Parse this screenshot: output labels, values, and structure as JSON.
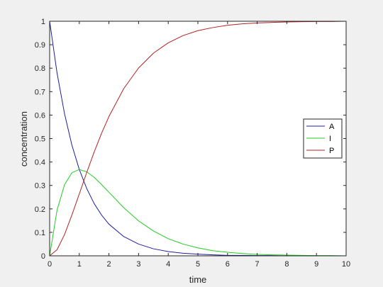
{
  "chart_data": {
    "type": "line",
    "title": "",
    "xlabel": "time",
    "ylabel": "concentration",
    "xlim": [
      0,
      10
    ],
    "ylim": [
      0,
      1
    ],
    "xticks": [
      0,
      1,
      2,
      3,
      4,
      5,
      6,
      7,
      8,
      9,
      10
    ],
    "yticks": [
      0,
      0.1,
      0.2,
      0.3,
      0.4,
      0.5,
      0.6,
      0.7,
      0.8,
      0.9,
      1
    ],
    "grid": false,
    "legend_placement": "right",
    "x": [
      0,
      0.25,
      0.5,
      0.75,
      1,
      1.25,
      1.5,
      1.75,
      2,
      2.5,
      3,
      3.5,
      4,
      4.5,
      5,
      5.5,
      6,
      6.5,
      7,
      7.5,
      8,
      8.5,
      9,
      9.5,
      10
    ],
    "series": [
      {
        "name": "A",
        "color": "#1f1f9f",
        "values": [
          1.0,
          0.779,
          0.607,
          0.472,
          0.368,
          0.287,
          0.223,
          0.174,
          0.135,
          0.082,
          0.05,
          0.03,
          0.018,
          0.011,
          0.007,
          0.004,
          0.002,
          0.002,
          0.001,
          0.001,
          0.0,
          0.0,
          0.0,
          0.0,
          0.0
        ]
      },
      {
        "name": "I",
        "color": "#22cc22",
        "values": [
          0.0,
          0.195,
          0.303,
          0.354,
          0.368,
          0.358,
          0.335,
          0.304,
          0.271,
          0.205,
          0.149,
          0.106,
          0.073,
          0.05,
          0.034,
          0.022,
          0.015,
          0.01,
          0.006,
          0.004,
          0.003,
          0.002,
          0.001,
          0.001,
          0.0
        ]
      },
      {
        "name": "P",
        "color": "#b22222",
        "values": [
          0.0,
          0.026,
          0.09,
          0.174,
          0.264,
          0.355,
          0.442,
          0.522,
          0.594,
          0.713,
          0.801,
          0.864,
          0.908,
          0.939,
          0.96,
          0.973,
          0.983,
          0.989,
          0.993,
          0.995,
          0.997,
          0.998,
          0.999,
          0.999,
          1.0
        ]
      }
    ]
  }
}
